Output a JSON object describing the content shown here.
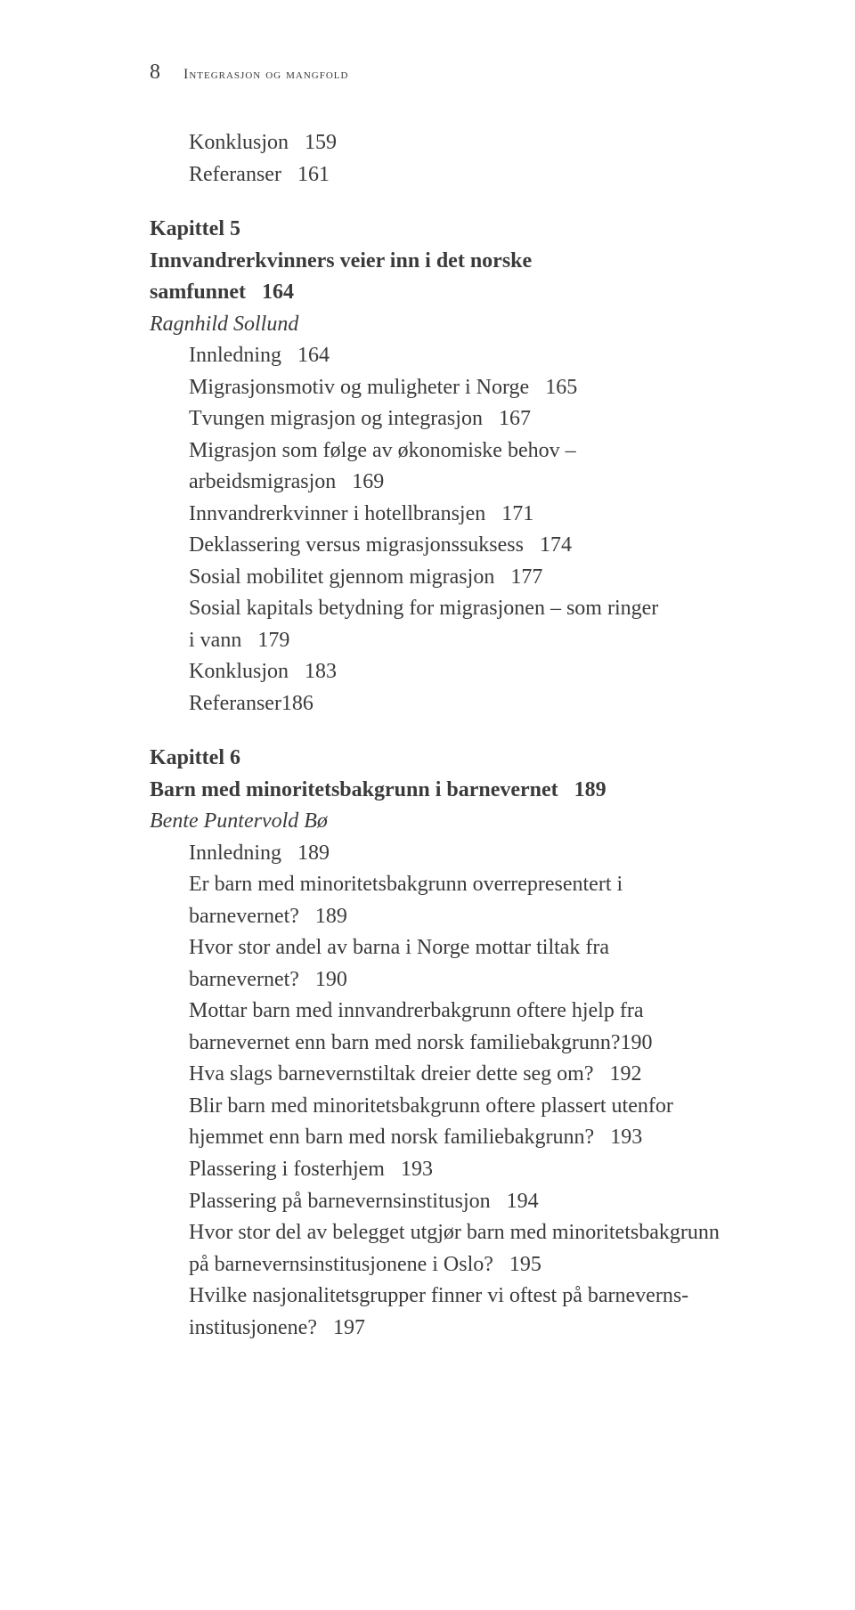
{
  "header": {
    "page_number": "8",
    "running_title": "Integrasjon og mangfold"
  },
  "toc": {
    "block1": [
      {
        "text": "Konklusjon",
        "page": "159"
      },
      {
        "text": "Referanser",
        "page": "161"
      }
    ],
    "block2": {
      "chapter_label": "Kapittel 5",
      "chapter_title_line1": "Innvandrerkvinners veier inn i det norske",
      "chapter_title_line2": "samfunnet",
      "chapter_page": "164",
      "author": "Ragnhild Sollund",
      "entries": [
        {
          "text": "Innledning",
          "page": "164"
        },
        {
          "text": "Migrasjonsmotiv og muligheter i Norge",
          "page": "165"
        },
        {
          "text": "Tvungen migrasjon og integrasjon",
          "page": "167"
        },
        {
          "text_line1": "Migrasjon som følge av økonomiske behov –",
          "text_line2": "arbeidsmigrasjon",
          "page": "169"
        },
        {
          "text": "Innvandrerkvinner i hotellbransjen",
          "page": "171"
        },
        {
          "text": "Deklassering versus migrasjonssuksess",
          "page": "174"
        },
        {
          "text": "Sosial mobilitet gjennom migrasjon",
          "page": "177"
        },
        {
          "text_line1": "Sosial kapitals betydning for migrasjonen – som ringer",
          "text_line2": "i vann",
          "page": "179"
        },
        {
          "text": "Konklusjon",
          "page": "183"
        },
        {
          "text": "Referanser186",
          "page": ""
        }
      ]
    },
    "block3": {
      "chapter_label": "Kapittel 6",
      "chapter_title": "Barn med minoritetsbakgrunn i barnevernet",
      "chapter_page": "189",
      "author": "Bente Puntervold Bø",
      "entries": [
        {
          "text": "Innledning",
          "page": "189"
        },
        {
          "text_line1": "Er barn med minoritetsbakgrunn overrepresentert i",
          "text_line2": "barnevernet?",
          "page": "189"
        },
        {
          "text_line1": "Hvor stor andel av barna i Norge mottar tiltak fra",
          "text_line2": "barnevernet?",
          "page": "190"
        },
        {
          "text_line1": "Mottar barn med innvandrerbakgrunn oftere hjelp fra",
          "text_line2": "barnevernet enn barn med norsk familiebakgrunn?190",
          "page": ""
        },
        {
          "text": "Hva slags barnevernstiltak dreier dette seg om?",
          "page": "192"
        },
        {
          "text_line1": "Blir barn med minoritetsbakgrunn oftere plassert utenfor",
          "text_line2": "hjemmet enn barn med norsk familiebakgrunn?",
          "page": "193"
        },
        {
          "text": "Plassering i fosterhjem",
          "page": "193"
        },
        {
          "text": "Plassering på barnevernsinstitusjon",
          "page": "194"
        },
        {
          "text_line1": "Hvor stor del av belegget utgjør barn med minoritetsbakgrunn",
          "text_line2": "på barnevernsinstitusjonene i Oslo?",
          "page": "195"
        },
        {
          "text_line1": "Hvilke nasjonalitetsgrupper finner vi oftest på barneverns-",
          "text_line2": "institusjonene?",
          "page": "197"
        }
      ]
    }
  }
}
